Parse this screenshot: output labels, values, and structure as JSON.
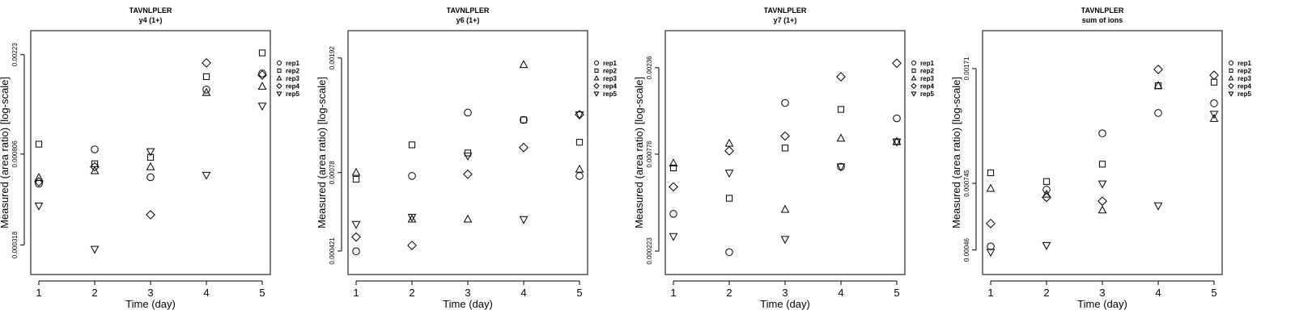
{
  "chart_data": [
    {
      "type": "scatter",
      "title": "TAVNLPLER",
      "subtitle": "y4 (1+)",
      "xlabel": "Time (day)",
      "ylabel": "Measured (area ratio) [log-scale]",
      "x": [
        1,
        2,
        3,
        4,
        5
      ],
      "x_tick_labels": [
        "1",
        "2",
        "3",
        "4",
        "5"
      ],
      "y_ticks": [
        0.000318,
        0.000806,
        0.00223
      ],
      "y_tick_labels": [
        "0.000318",
        "0.000806",
        "0.00223"
      ],
      "ylim": [
        0.000235,
        0.00285
      ],
      "legend_position": "right",
      "series": [
        {
          "name": "rep1",
          "marker": "circle",
          "values": [
            0.000595,
            0.000846,
            0.000636,
            0.00156,
            0.00184
          ]
        },
        {
          "name": "rep2",
          "marker": "square",
          "values": [
            0.000892,
            0.00073,
            0.00078,
            0.00178,
            0.00227
          ]
        },
        {
          "name": "rep3",
          "marker": "triangle-up",
          "values": [
            0.000633,
            0.000678,
            0.000706,
            0.00151,
            0.00161
          ]
        },
        {
          "name": "rep4",
          "marker": "diamond",
          "values": [
            0.000607,
            0.000708,
            0.000433,
            0.00205,
            0.00181
          ]
        },
        {
          "name": "rep5",
          "marker": "triangle-down",
          "values": [
            0.000475,
            0.000305,
            0.000829,
            0.000651,
            0.00132
          ]
        }
      ]
    },
    {
      "type": "scatter",
      "title": "TAVNLPLER",
      "subtitle": "y6 (1+)",
      "xlabel": "Time (day)",
      "ylabel": "Measured (area ratio) [log-scale]",
      "x": [
        1,
        2,
        3,
        4,
        5
      ],
      "x_tick_labels": [
        "1",
        "2",
        "3",
        "4",
        "5"
      ],
      "y_ticks": [
        0.000421,
        0.00078,
        0.00192
      ],
      "y_tick_labels": [
        "0.000421",
        "0.00078",
        "0.00192"
      ],
      "ylim": [
        0.00035,
        0.00238
      ],
      "legend_position": "right",
      "series": [
        {
          "name": "rep1",
          "marker": "circle",
          "values": [
            0.00042,
            0.00076,
            0.00125,
            0.00118,
            0.00076
          ]
        },
        {
          "name": "rep2",
          "marker": "square",
          "values": [
            0.00074,
            0.00097,
            0.00091,
            0.00118,
            0.00099
          ]
        },
        {
          "name": "rep3",
          "marker": "triangle-up",
          "values": [
            0.00078,
            0.00054,
            0.00054,
            0.00182,
            0.0008
          ]
        },
        {
          "name": "rep4",
          "marker": "diamond",
          "values": [
            0.00047,
            0.00044,
            0.00077,
            0.00095,
            0.00123
          ]
        },
        {
          "name": "rep5",
          "marker": "triangle-down",
          "values": [
            0.00052,
            0.00055,
            0.00089,
            0.00054,
            0.00123
          ]
        }
      ]
    },
    {
      "type": "scatter",
      "title": "TAVNLPLER",
      "subtitle": "y7 (1+)",
      "xlabel": "Time (day)",
      "ylabel": "Measured (area ratio) [log-scale]",
      "x": [
        1,
        2,
        3,
        4,
        5
      ],
      "x_tick_labels": [
        "1",
        "2",
        "3",
        "4",
        "5"
      ],
      "y_ticks": [
        0.000223,
        0.000776,
        0.00236
      ],
      "y_tick_labels": [
        "0.000223",
        "0.000776",
        "0.00236"
      ],
      "ylim": [
        0.000165,
        0.0038
      ],
      "legend_position": "right",
      "series": [
        {
          "name": "rep1",
          "marker": "circle",
          "values": [
            0.00036,
            0.00022,
            0.0015,
            0.00066,
            0.00123
          ]
        },
        {
          "name": "rep2",
          "marker": "square",
          "values": [
            0.00065,
            0.00044,
            0.00084,
            0.00138,
            0.00091
          ]
        },
        {
          "name": "rep3",
          "marker": "triangle-up",
          "values": [
            0.00069,
            0.00089,
            0.00038,
            0.00095,
            0.00091
          ]
        },
        {
          "name": "rep4",
          "marker": "diamond",
          "values": [
            0.00051,
            0.00081,
            0.00098,
            0.0021,
            0.0025
          ]
        },
        {
          "name": "rep5",
          "marker": "triangle-down",
          "values": [
            0.00027,
            0.00061,
            0.00026,
            0.00066,
            0.00091
          ]
        }
      ]
    },
    {
      "type": "scatter",
      "title": "TAVNLPLER",
      "subtitle": "sum of ions",
      "xlabel": "Time (day)",
      "ylabel": "Measured (area ratio) [log-scale]",
      "x": [
        1,
        2,
        3,
        4,
        5
      ],
      "x_tick_labels": [
        "1",
        "2",
        "3",
        "4",
        "5"
      ],
      "y_ticks": [
        0.00046,
        0.000745,
        0.00171
      ],
      "y_tick_labels": [
        "0.00046",
        "0.000745",
        "0.00171"
      ],
      "ylim": [
        0.000385,
        0.00225
      ],
      "legend_position": "right",
      "series": [
        {
          "name": "rep1",
          "marker": "circle",
          "values": [
            0.000472,
            0.000712,
            0.00107,
            0.00124,
            0.00133
          ]
        },
        {
          "name": "rep2",
          "marker": "square",
          "values": [
            0.000804,
            0.000755,
            0.000856,
            0.00151,
            0.00155
          ]
        },
        {
          "name": "rep3",
          "marker": "triangle-up",
          "values": [
            0.000717,
            0.000688,
            0.000613,
            0.00151,
            0.00119
          ]
        },
        {
          "name": "rep4",
          "marker": "diamond",
          "values": [
            0.000557,
            0.000673,
            0.000655,
            0.0017,
            0.00163
          ]
        },
        {
          "name": "rep5",
          "marker": "triangle-down",
          "values": [
            0.000453,
            0.000476,
            0.000743,
            0.000634,
            0.00123
          ]
        }
      ]
    }
  ]
}
